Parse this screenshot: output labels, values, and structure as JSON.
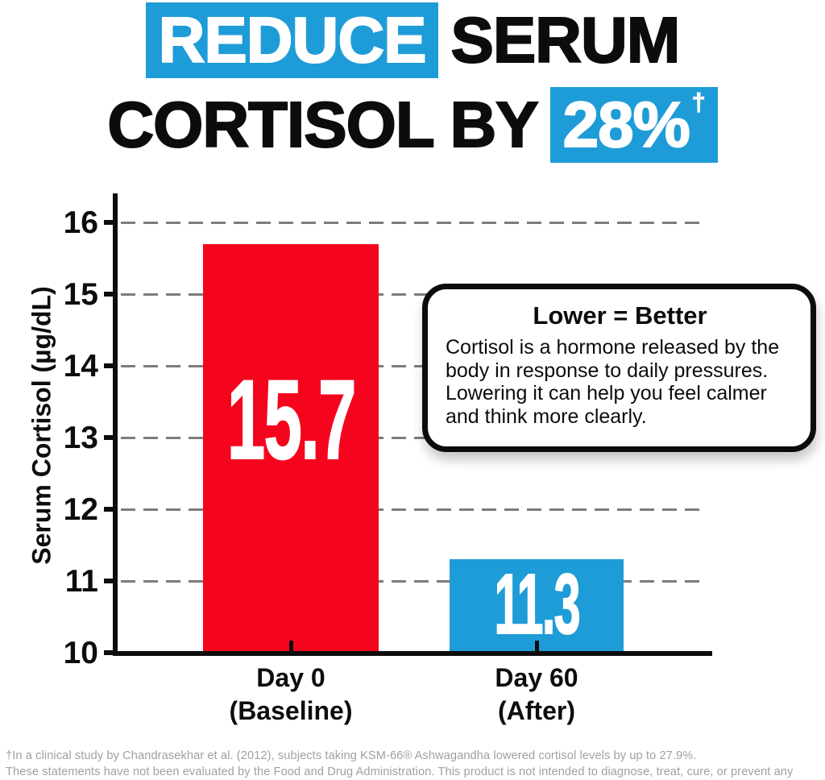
{
  "headline": {
    "highlight1": "REDUCE",
    "rest1": "SERUM",
    "rest2": "CORTISOL BY",
    "highlight2": "28%",
    "dagger": "†"
  },
  "chart_data": {
    "type": "bar",
    "title": "",
    "categories": [
      {
        "label": "Day 0",
        "sublabel": "(Baseline)"
      },
      {
        "label": "Day 60",
        "sublabel": "(After)"
      }
    ],
    "values": [
      15.7,
      11.3
    ],
    "value_labels": [
      "15.7",
      "11.3"
    ],
    "bar_colors": [
      "#F5051D",
      "#1E9CD8"
    ],
    "xlabel": "",
    "ylabel": "Serum Cortisol (µg/dL)",
    "ylim": [
      10,
      16
    ],
    "yticks": [
      10,
      11,
      12,
      13,
      14,
      15,
      16
    ],
    "grid": "dashed horizontal gridlines",
    "legend": "none"
  },
  "callout": {
    "title": "Lower = Better",
    "body": "Cortisol is a hormone released by the body in response to daily pressures. Lowering it can help you feel calmer and think more clearly."
  },
  "footnote": {
    "line1": "†In a clinical study by Chandrasekhar et al. (2012), subjects taking KSM-66® Ashwagandha lowered cortisol levels by up to 27.9%.",
    "line2": "These statements have not been evaluated by the Food and Drug Administration. This product is not intended to diagnose, treat, cure, or prevent any disease."
  },
  "colors": {
    "accent_blue": "#1E9CD8",
    "bar_red": "#F5051D",
    "grid_gray": "#7C7C7C",
    "footnote_gray": "#A0A0A0",
    "text_black": "#0D0D0D"
  }
}
